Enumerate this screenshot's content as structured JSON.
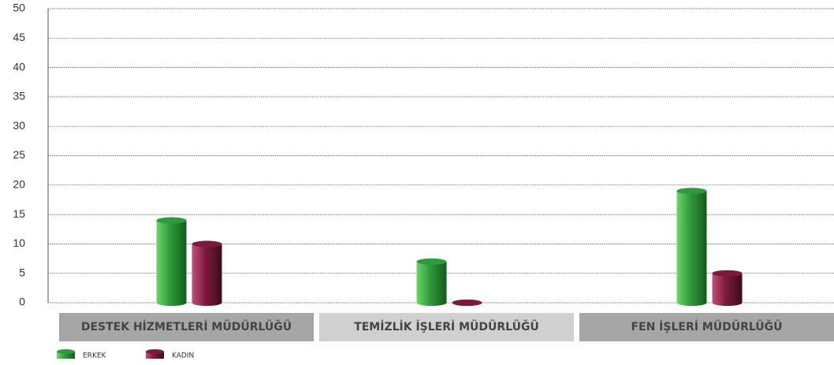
{
  "chart_data": {
    "type": "bar",
    "categories": [
      "DESTEK HİZMETLERİ MÜDÜRLÜĞÜ",
      "TEMİZLİK İŞLERİ MÜDÜRLÜĞÜ",
      "FEN İŞLERİ MÜDÜRLÜĞÜ"
    ],
    "series": [
      {
        "name": "ERKEK",
        "color": "#2f9a3c",
        "values": [
          14,
          7,
          19
        ]
      },
      {
        "name": "KADIN",
        "color": "#7d1a3c",
        "values": [
          10,
          0,
          5
        ]
      }
    ],
    "ylim": [
      0,
      50
    ],
    "yticks": [
      0,
      5,
      10,
      15,
      20,
      25,
      30,
      35,
      40,
      45,
      50
    ],
    "grid": true
  }
}
